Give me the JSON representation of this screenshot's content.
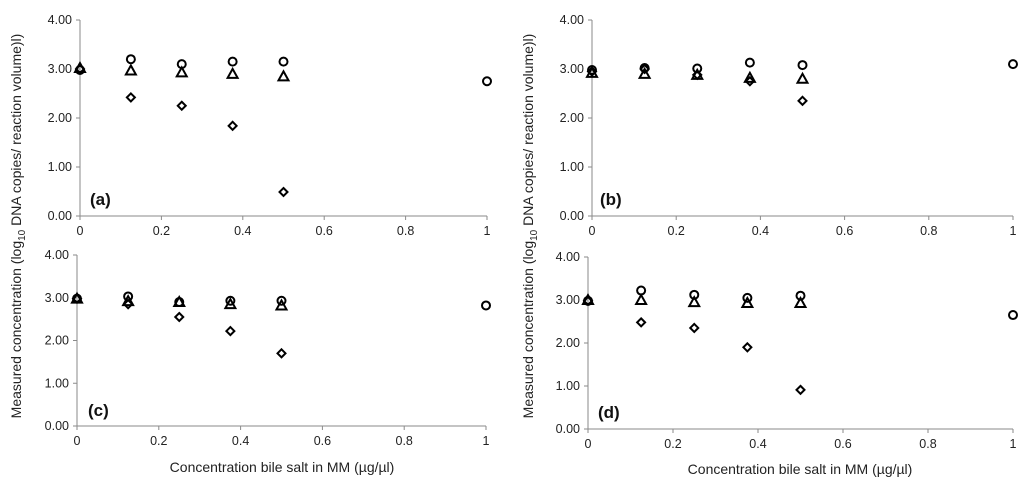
{
  "figure": {
    "xlabel": "Concentration bile salt in MM (µg/µl)",
    "ylabel_prefix": "Measured concentration (log",
    "ylabel_sub": "10",
    "ylabel_suffix": " DNA copies/ reaction volume)l)",
    "x_ticks": [
      "0",
      "0.2",
      "0.4",
      "0.6",
      "0.8",
      "1"
    ],
    "y_ticks": [
      "0.00",
      "1.00",
      "2.00",
      "3.00",
      "4.00"
    ],
    "marker_color": "#000000"
  },
  "chart_data": [
    {
      "type": "scatter",
      "panel_label": "(a)",
      "xlim": [
        0,
        1
      ],
      "ylim": [
        0,
        4
      ],
      "series": [
        {
          "marker": "circle",
          "x": [
            0,
            0.125,
            0.25,
            0.375,
            0.5,
            1
          ],
          "y": [
            2.98,
            3.2,
            3.1,
            3.15,
            3.15,
            2.75
          ]
        },
        {
          "marker": "triangle",
          "x": [
            0,
            0.125,
            0.25,
            0.375,
            0.5
          ],
          "y": [
            3.02,
            2.97,
            2.93,
            2.9,
            2.85
          ]
        },
        {
          "marker": "diamond",
          "x": [
            0,
            0.125,
            0.25,
            0.375,
            0.5
          ],
          "y": [
            3.0,
            2.42,
            2.25,
            1.84,
            0.49
          ]
        }
      ]
    },
    {
      "type": "scatter",
      "panel_label": "(b)",
      "xlim": [
        0,
        1
      ],
      "ylim": [
        0,
        4
      ],
      "series": [
        {
          "marker": "circle",
          "x": [
            0,
            0.125,
            0.25,
            0.375,
            0.5,
            1
          ],
          "y": [
            2.98,
            3.02,
            3.01,
            3.13,
            3.08,
            3.1
          ]
        },
        {
          "marker": "triangle",
          "x": [
            0,
            0.125,
            0.25,
            0.375,
            0.5
          ],
          "y": [
            2.92,
            2.9,
            2.88,
            2.82,
            2.8
          ]
        },
        {
          "marker": "diamond",
          "x": [
            0,
            0.125,
            0.25,
            0.375,
            0.5
          ],
          "y": [
            2.95,
            3.0,
            2.88,
            2.75,
            2.35
          ]
        }
      ]
    },
    {
      "type": "scatter",
      "panel_label": "(c)",
      "xlim": [
        0,
        1
      ],
      "ylim": [
        0,
        4
      ],
      "series": [
        {
          "marker": "circle",
          "x": [
            0,
            0.125,
            0.25,
            0.375,
            0.5,
            1
          ],
          "y": [
            2.98,
            3.03,
            2.9,
            2.93,
            2.93,
            2.82
          ]
        },
        {
          "marker": "triangle",
          "x": [
            0,
            0.125,
            0.25,
            0.375,
            0.5
          ],
          "y": [
            2.98,
            2.92,
            2.9,
            2.85,
            2.82
          ]
        },
        {
          "marker": "diamond",
          "x": [
            0,
            0.125,
            0.25,
            0.375,
            0.5
          ],
          "y": [
            2.98,
            2.85,
            2.55,
            2.22,
            1.7
          ]
        }
      ]
    },
    {
      "type": "scatter",
      "panel_label": "(d)",
      "xlim": [
        0,
        1
      ],
      "ylim": [
        0,
        4
      ],
      "series": [
        {
          "marker": "circle",
          "x": [
            0,
            0.125,
            0.25,
            0.375,
            0.5,
            1
          ],
          "y": [
            2.98,
            3.22,
            3.12,
            3.05,
            3.1,
            2.65
          ]
        },
        {
          "marker": "triangle",
          "x": [
            0,
            0.125,
            0.25,
            0.375,
            0.5
          ],
          "y": [
            3.0,
            3.0,
            2.95,
            2.93,
            2.93
          ]
        },
        {
          "marker": "diamond",
          "x": [
            0,
            0.125,
            0.25,
            0.375,
            0.5
          ],
          "y": [
            2.98,
            2.48,
            2.35,
            1.9,
            0.91
          ]
        }
      ]
    }
  ]
}
